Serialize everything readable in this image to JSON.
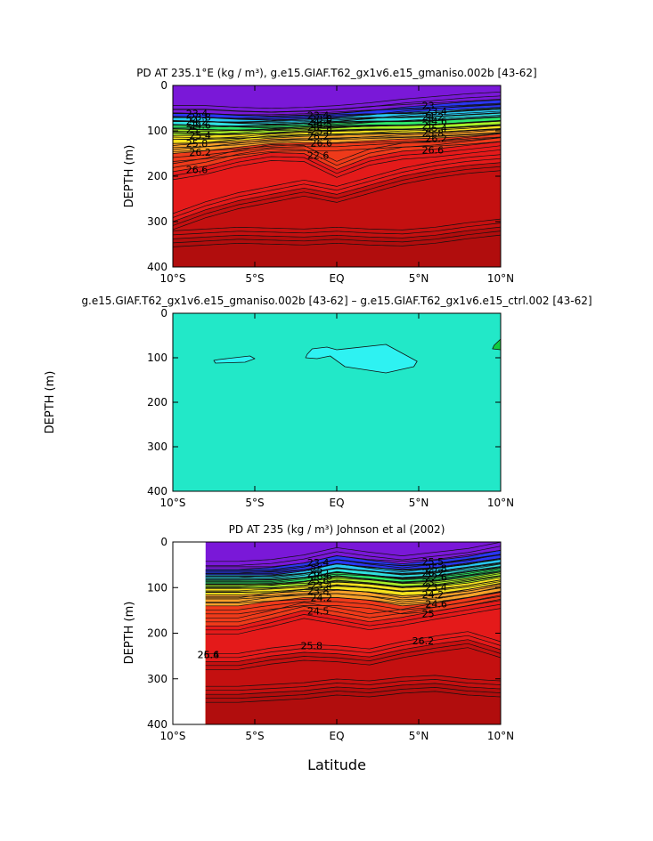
{
  "x_axis_label": "Latitude",
  "chart_data": [
    {
      "type": "heatmap",
      "title": "PD AT 235.1°E (kg / m³), g.e15.GIAF.T62_gx1v6.e15_gmaniso.002b [43-62]",
      "xlabel": "",
      "ylabel": "DEPTH (m)",
      "x_tick_labels": [
        "10°S",
        "5°S",
        "EQ",
        "5°N",
        "10°N"
      ],
      "x_tick_values": [
        -10,
        -5,
        0,
        5,
        10
      ],
      "y_tick_labels": [
        "0",
        "100",
        "200",
        "300",
        "400"
      ],
      "y_tick_values": [
        0,
        100,
        200,
        300,
        400
      ],
      "xlim": [
        -10,
        10
      ],
      "ylim": [
        400,
        0
      ],
      "contour_labels": [
        "23.4",
        "23.8",
        "24.2",
        "24.6",
        "25",
        "25.4",
        "25.8",
        "26.2",
        "26.6",
        "23.4",
        "23.8",
        "24.2",
        "24.5",
        "25",
        "25.8",
        "26.2",
        "26.6",
        "22.6",
        "23",
        "23.4",
        "24.2",
        "24.6",
        "25",
        "25.4",
        "25.8",
        "26.2",
        "26.6"
      ],
      "isopycnals": [
        {
          "level": 23.0,
          "depth": [
            62,
            62,
            66,
            68,
            66,
            62,
            56,
            48,
            42,
            36,
            32
          ]
        },
        {
          "level": 23.4,
          "depth": [
            70,
            70,
            74,
            76,
            74,
            70,
            64,
            60,
            56,
            52,
            48
          ]
        },
        {
          "level": 23.8,
          "depth": [
            78,
            80,
            82,
            82,
            80,
            76,
            72,
            70,
            68,
            64,
            60
          ]
        },
        {
          "level": 24.2,
          "depth": [
            86,
            88,
            90,
            88,
            86,
            82,
            80,
            80,
            78,
            74,
            70
          ]
        },
        {
          "level": 24.6,
          "depth": [
            96,
            98,
            98,
            96,
            92,
            90,
            88,
            88,
            86,
            82,
            78
          ]
        },
        {
          "level": 25.0,
          "depth": [
            110,
            110,
            108,
            104,
            100,
            98,
            96,
            96,
            94,
            90,
            86
          ]
        },
        {
          "level": 25.4,
          "depth": [
            128,
            126,
            122,
            116,
            112,
            110,
            108,
            106,
            104,
            100,
            96
          ]
        },
        {
          "level": 25.8,
          "depth": [
            150,
            144,
            136,
            128,
            126,
            126,
            122,
            118,
            116,
            112,
            106
          ]
        },
        {
          "level": 26.2,
          "depth": [
            190,
            178,
            160,
            148,
            150,
            185,
            158,
            145,
            140,
            132,
            124
          ]
        },
        {
          "level": 26.6,
          "depth": [
            300,
            274,
            254,
            240,
            226,
            240,
            220,
            200,
            186,
            176,
            170
          ]
        },
        {
          "level": 27.0,
          "depth": [
            338,
            334,
            330,
            332,
            334,
            330,
            334,
            336,
            330,
            320,
            312
          ]
        }
      ]
    },
    {
      "type": "heatmap",
      "title": "g.e15.GIAF.T62_gx1v6.e15_gmaniso.002b [43-62] – g.e15.GIAF.T62_gx1v6.e15_ctrl.002 [43-62]",
      "xlabel": "",
      "ylabel": "DEPTH (m)",
      "x_tick_labels": [
        "10°S",
        "5°S",
        "EQ",
        "5°N",
        "10°N"
      ],
      "x_tick_values": [
        -10,
        -5,
        0,
        5,
        10
      ],
      "y_tick_labels": [
        "0",
        "100",
        "200",
        "300",
        "400"
      ],
      "y_tick_values": [
        0,
        100,
        200,
        300,
        400
      ],
      "xlim": [
        -10,
        10
      ],
      "ylim": [
        400,
        0
      ],
      "background_color": "#22e8c8",
      "regions": [
        {
          "label": "small negative anomaly",
          "color": "#2ef2f2",
          "lat": [
            -7.2,
            -5.3,
            -5.0,
            -5.6,
            -7.4,
            -7.5
          ],
          "depth": [
            104,
            96,
            102,
            110,
            112,
            106
          ]
        },
        {
          "label": "small negative anomaly",
          "color": "#2ef2f2",
          "lat": [
            -1.8,
            -1.5,
            -0.6,
            0.0,
            3.0,
            4.9,
            4.7,
            3.0,
            0.5,
            -0.4,
            -1.2,
            -1.9,
            -1.8
          ],
          "depth": [
            92,
            80,
            76,
            82,
            70,
            108,
            120,
            134,
            120,
            96,
            102,
            100,
            92
          ]
        },
        {
          "label": "small positive anomaly",
          "color": "#10cc40",
          "lat": [
            9.6,
            10,
            10,
            9.5
          ],
          "depth": [
            72,
            58,
            82,
            80
          ]
        }
      ]
    },
    {
      "type": "heatmap",
      "title": "PD AT 235 (kg / m³) Johnson et al (2002)",
      "xlabel": "Latitude",
      "ylabel": "DEPTH (m)",
      "x_tick_labels": [
        "10°S",
        "5°S",
        "EQ",
        "5°N",
        "10°N"
      ],
      "x_tick_values": [
        -10,
        -5,
        0,
        5,
        10
      ],
      "y_tick_labels": [
        "0",
        "100",
        "200",
        "300",
        "400"
      ],
      "y_tick_values": [
        0,
        100,
        200,
        300,
        400
      ],
      "xlim": [
        -10,
        10
      ],
      "ylim": [
        400,
        0
      ],
      "data_extent_lat": [
        -8,
        10
      ],
      "contour_labels": [
        "23.4",
        "25",
        "26.2",
        "26.6",
        "25.6",
        "23.4",
        "23.8",
        "24.2",
        "24.5",
        "25.5",
        "25.8",
        "26.2",
        "22.6",
        "23",
        "23.4",
        "24.2",
        "24.6",
        "25",
        "25.4",
        "25.8",
        "26.2",
        "26.6"
      ],
      "isopycnals": [
        {
          "level": 23.0,
          "depth": [
            null,
            null,
            60,
            56,
            46,
            30,
            40,
            48,
            40,
            32,
            18
          ]
        },
        {
          "level": 23.4,
          "depth": [
            null,
            null,
            72,
            72,
            64,
            48,
            56,
            60,
            56,
            46,
            36
          ]
        },
        {
          "level": 23.8,
          "depth": [
            null,
            null,
            78,
            78,
            70,
            56,
            64,
            70,
            66,
            56,
            46
          ]
        },
        {
          "level": 24.2,
          "depth": [
            null,
            null,
            84,
            84,
            78,
            66,
            72,
            80,
            76,
            66,
            56
          ]
        },
        {
          "level": 24.6,
          "depth": [
            null,
            null,
            92,
            92,
            86,
            76,
            82,
            90,
            86,
            78,
            66
          ]
        },
        {
          "level": 25.0,
          "depth": [
            null,
            null,
            102,
            100,
            96,
            88,
            92,
            100,
            98,
            90,
            78
          ]
        },
        {
          "level": 25.4,
          "depth": [
            null,
            null,
            116,
            112,
            108,
            104,
            110,
            118,
            114,
            104,
            92
          ]
        },
        {
          "level": 25.8,
          "depth": [
            null,
            null,
            140,
            130,
            122,
            122,
            128,
            140,
            134,
            122,
            108
          ]
        },
        {
          "level": 26.2,
          "depth": [
            null,
            null,
            184,
            168,
            150,
            162,
            175,
            165,
            152,
            140,
            128
          ]
        },
        {
          "level": 26.6,
          "depth": [
            null,
            null,
            262,
            250,
            242,
            245,
            252,
            236,
            224,
            214,
            236
          ]
        },
        {
          "level": 27.0,
          "depth": [
            null,
            null,
            334,
            330,
            326,
            318,
            322,
            314,
            310,
            318,
            322
          ]
        }
      ]
    }
  ]
}
